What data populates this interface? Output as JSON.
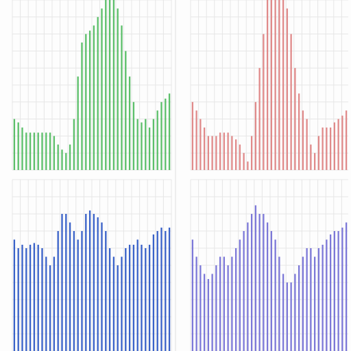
{
  "chart_data": [
    {
      "type": "bar",
      "color": "#5cbf6a",
      "ylim": [
        0,
        1
      ],
      "yticks": [
        0,
        0.1,
        0.2,
        0.3,
        0.4,
        0.5,
        0.6,
        0.7,
        0.8,
        0.9,
        1
      ],
      "grid": true,
      "values": [
        0.3,
        0.28,
        0.25,
        0.22,
        0.22,
        0.22,
        0.22,
        0.22,
        0.22,
        0.22,
        0.2,
        0.15,
        0.12,
        0.1,
        0.15,
        0.3,
        0.55,
        0.75,
        0.8,
        0.82,
        0.85,
        0.9,
        0.95,
        1,
        1,
        1,
        0.95,
        0.85,
        0.7,
        0.55,
        0.4,
        0.3,
        0.28,
        0.3,
        0.25,
        0.3,
        0.35,
        0.4,
        0.42,
        0.45
      ]
    },
    {
      "type": "bar",
      "color": "#e08a8a",
      "ylim": [
        0,
        1
      ],
      "yticks": [
        0,
        0.1,
        0.2,
        0.3,
        0.4,
        0.5,
        0.6,
        0.7,
        0.8,
        0.9,
        1
      ],
      "grid": true,
      "values": [
        0.4,
        0.35,
        0.3,
        0.25,
        0.2,
        0.2,
        0.2,
        0.22,
        0.22,
        0.22,
        0.2,
        0.18,
        0.15,
        0.1,
        0.05,
        0.2,
        0.4,
        0.6,
        0.8,
        1,
        1,
        1,
        1,
        1,
        0.95,
        0.8,
        0.6,
        0.45,
        0.35,
        0.3,
        0.15,
        0.1,
        0.2,
        0.25,
        0.25,
        0.25,
        0.28,
        0.3,
        0.32,
        0.35
      ]
    },
    {
      "type": "bar",
      "color": "#3a62c8",
      "ylim": [
        0,
        1
      ],
      "yticks": [
        0,
        0.1,
        0.2,
        0.3,
        0.4,
        0.5,
        0.6,
        0.7,
        0.8,
        0.9,
        1
      ],
      "grid": true,
      "values": [
        0.65,
        0.6,
        0.62,
        0.6,
        0.62,
        0.63,
        0.62,
        0.6,
        0.55,
        0.5,
        0.55,
        0.7,
        0.8,
        0.8,
        0.75,
        0.7,
        0.65,
        0.7,
        0.8,
        0.82,
        0.8,
        0.78,
        0.75,
        0.7,
        0.6,
        0.55,
        0.5,
        0.55,
        0.6,
        0.62,
        0.62,
        0.65,
        0.62,
        0.6,
        0.62,
        0.68,
        0.7,
        0.72,
        0.7,
        0.72
      ]
    },
    {
      "type": "bar",
      "color": "#7c78d8",
      "ylim": [
        0,
        1
      ],
      "yticks": [
        0,
        0.1,
        0.2,
        0.3,
        0.4,
        0.5,
        0.6,
        0.7,
        0.8,
        0.9,
        1
      ],
      "grid": true,
      "values": [
        0.65,
        0.55,
        0.5,
        0.45,
        0.42,
        0.45,
        0.5,
        0.55,
        0.55,
        0.5,
        0.55,
        0.6,
        0.65,
        0.7,
        0.75,
        0.8,
        0.85,
        0.8,
        0.8,
        0.75,
        0.7,
        0.65,
        0.55,
        0.45,
        0.4,
        0.4,
        0.45,
        0.5,
        0.55,
        0.6,
        0.6,
        0.55,
        0.6,
        0.62,
        0.65,
        0.68,
        0.7,
        0.7,
        0.72,
        0.75
      ]
    }
  ]
}
